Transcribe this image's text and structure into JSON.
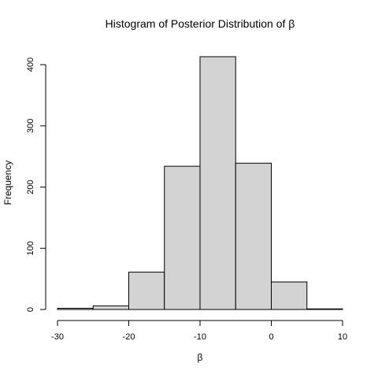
{
  "chart_data": {
    "type": "bar",
    "title": "Histogram of Posterior Distribution of β",
    "xlabel": "β",
    "ylabel": "Frequency",
    "bins": [
      {
        "x0": -30,
        "x1": -25,
        "count": 2
      },
      {
        "x0": -25,
        "x1": -20,
        "count": 6
      },
      {
        "x0": -20,
        "x1": -15,
        "count": 61
      },
      {
        "x0": -15,
        "x1": -10,
        "count": 234
      },
      {
        "x0": -10,
        "x1": -5,
        "count": 413
      },
      {
        "x0": -5,
        "x1": 0,
        "count": 239
      },
      {
        "x0": 0,
        "x1": 5,
        "count": 45
      },
      {
        "x0": 5,
        "x1": 10,
        "count": 1
      }
    ],
    "xlim": [
      -30,
      10
    ],
    "ylim": [
      0,
      413
    ],
    "xticks": [
      -30,
      -20,
      -10,
      0,
      10
    ],
    "yticks": [
      0,
      100,
      200,
      300,
      400
    ],
    "grid": false,
    "colors": {
      "bar_fill": "#d3d3d3",
      "bar_stroke": "#000000"
    }
  }
}
